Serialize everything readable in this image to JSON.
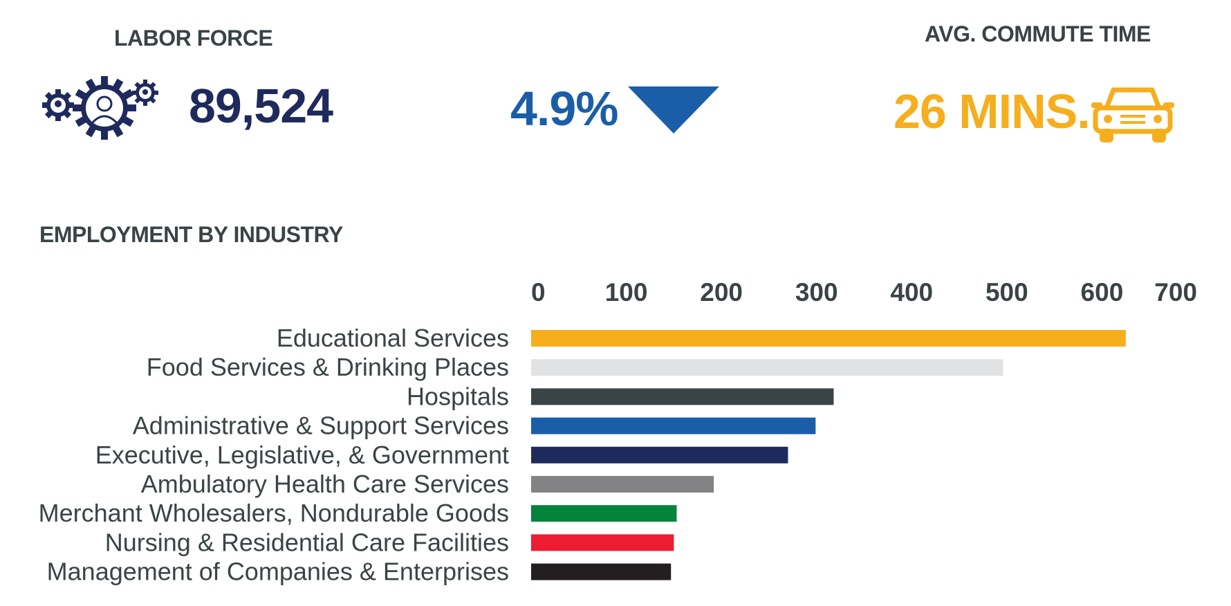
{
  "labor_force": {
    "heading": "LABOR FORCE",
    "value": "89,524",
    "icon": "gears-people-icon",
    "color": "#1f2a5c"
  },
  "unemployment": {
    "value": "4.9%",
    "icon": "down-triangle-icon",
    "color": "#1a5ea8"
  },
  "commute": {
    "heading": "AVG. COMMUTE TIME",
    "value": "26 MINS.",
    "icon": "car-icon",
    "color": "#f6ae1e"
  },
  "industry_heading": "EMPLOYMENT BY INDUSTRY",
  "chart_data": {
    "type": "bar",
    "orientation": "horizontal",
    "categories": [
      "Educational Services",
      "Food Services & Drinking Places",
      "Hospitals",
      "Administrative & Support Services",
      "Executive, Legislative, & Government",
      "Ambulatory Health Care Services",
      "Merchant Wholesalers, Nondurable Goods",
      "Nursing & Residential Care Facilities",
      "Management of Companies & Enterprises"
    ],
    "values": [
      625,
      496,
      318,
      299,
      270,
      192,
      153,
      150,
      147
    ],
    "colors": [
      "#f6ae1e",
      "#e1e2e3",
      "#3a4346",
      "#1a5ea8",
      "#1f2a5c",
      "#838385",
      "#04833d",
      "#ed1c33",
      "#231f20"
    ],
    "xlim": [
      0,
      700
    ],
    "ticks": [
      0,
      100,
      200,
      300,
      400,
      500,
      600,
      700
    ],
    "tick_labels": [
      "0",
      "100",
      "200",
      "300",
      "400",
      "500",
      "600",
      "700"
    ],
    "axis_position": "top",
    "grid": false,
    "legend": false
  }
}
